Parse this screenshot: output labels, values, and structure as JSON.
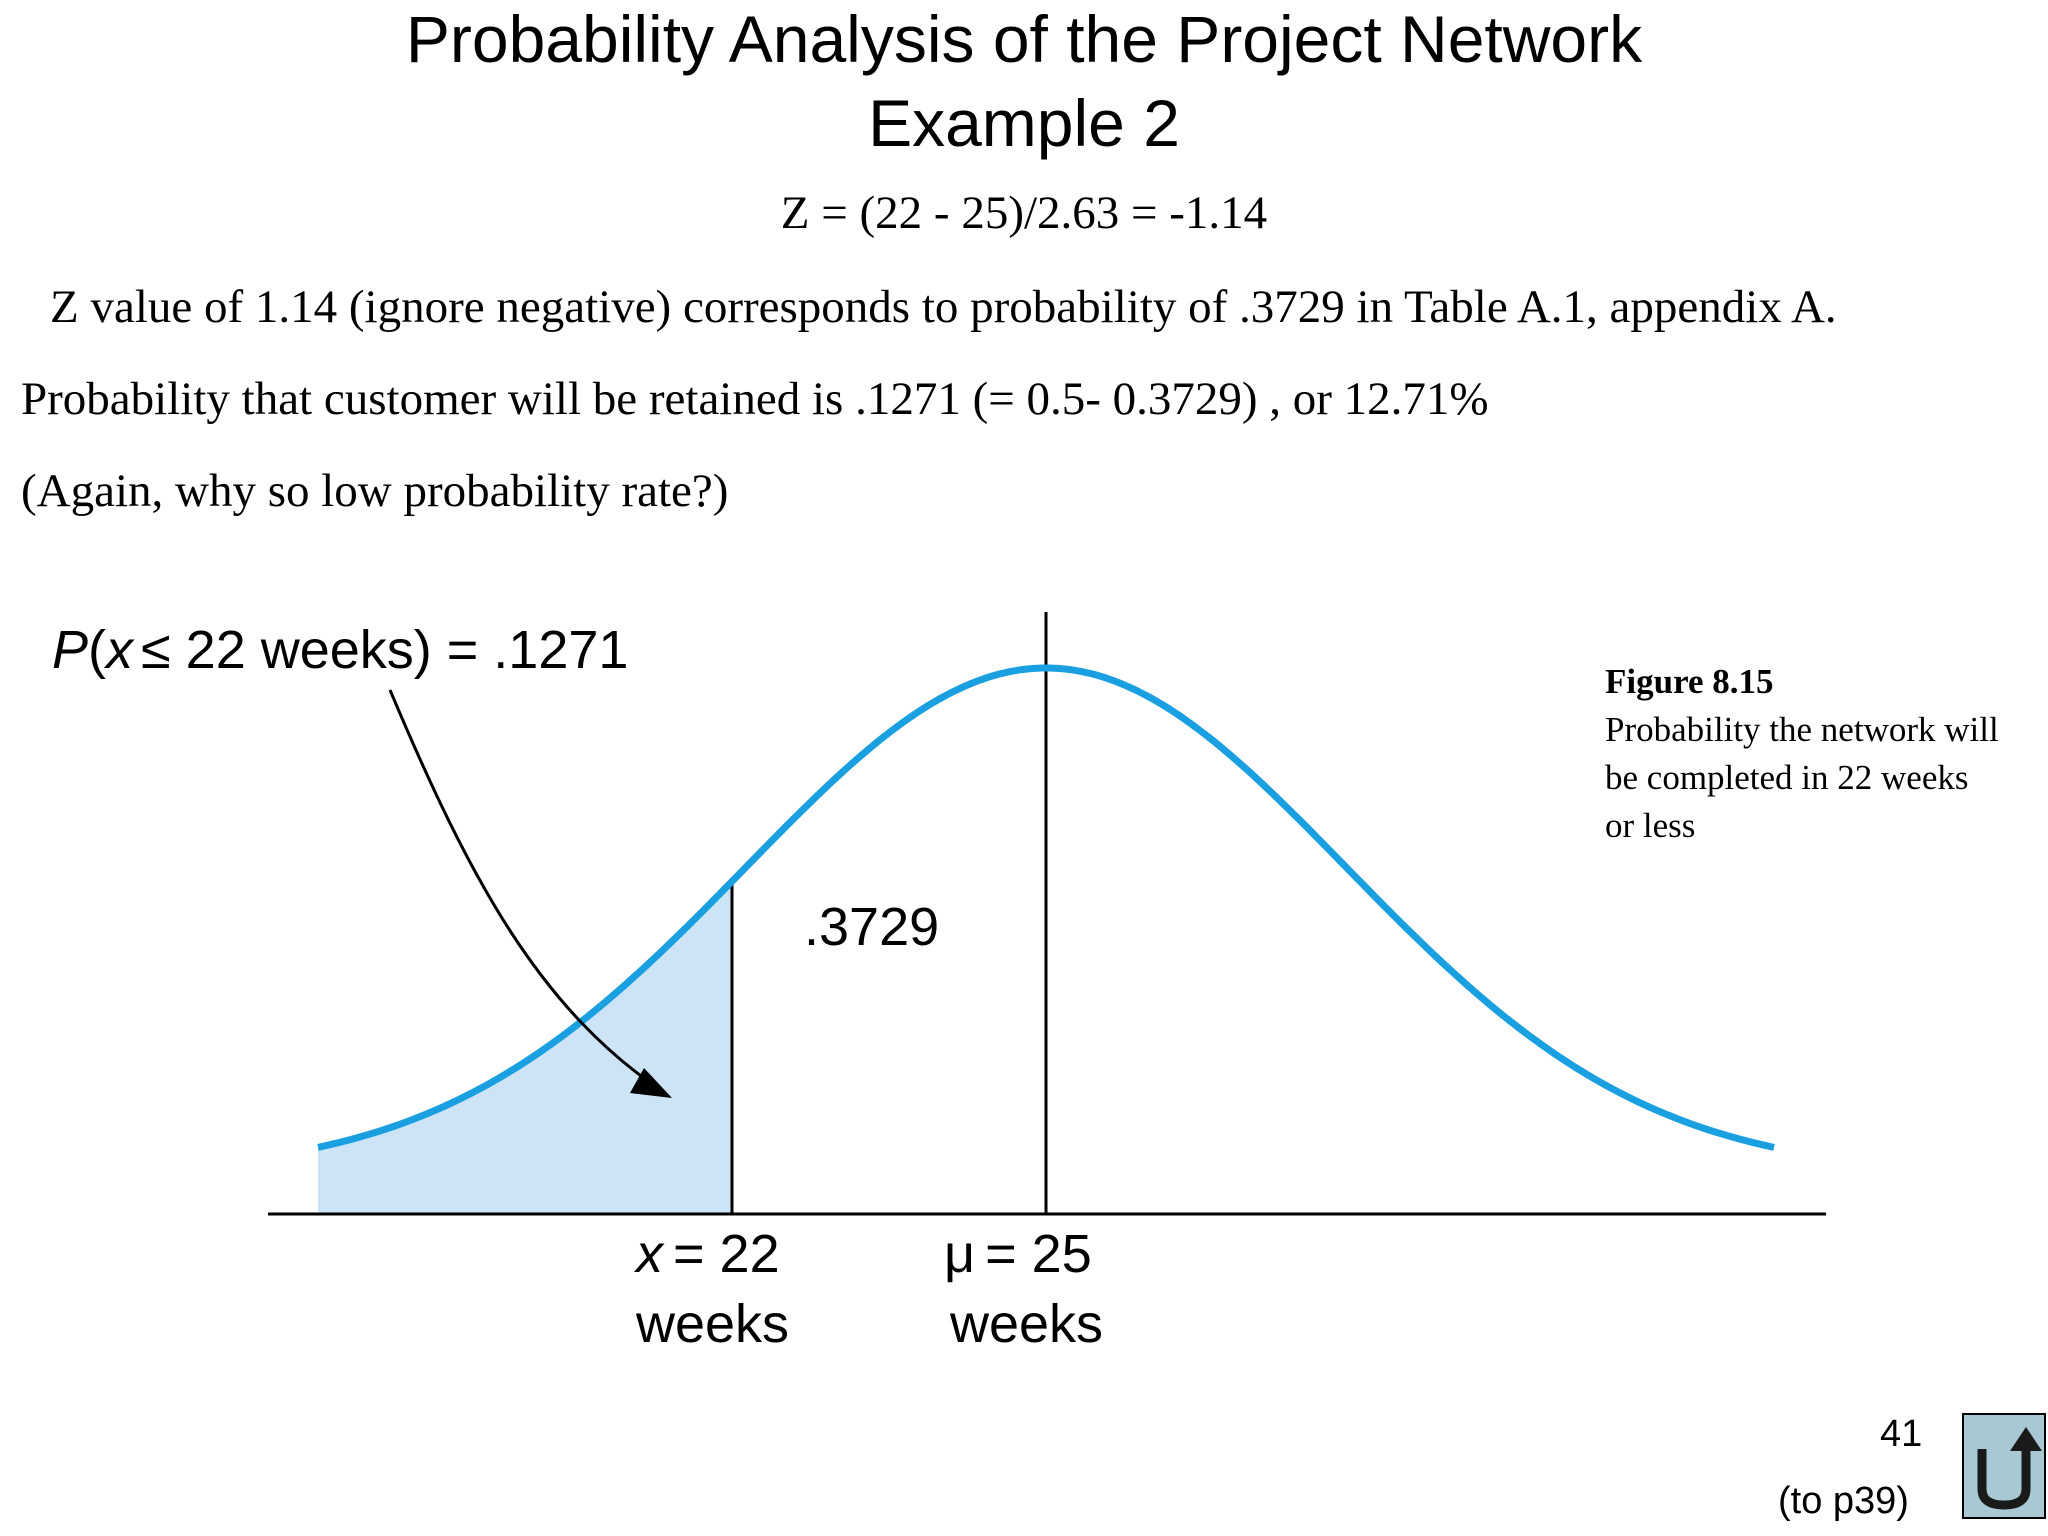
{
  "slide": {
    "title_line1": "Probability Analysis of the Project Network",
    "title_line2": "Example 2",
    "formula": "Z = (22 - 25)/2.63 = -1.14",
    "line1": "Z value of 1.14 (ignore negative) corresponds to probability of .3729 in Table A.1, appendix A.",
    "line2": "Probability that customer will be retained is .1271 (= 0.5- 0.3729) , or 12.71%",
    "line3": "(Again, why so low probability rate?)"
  },
  "figure": {
    "p_label_prefix": "P",
    "p_label_paren_open": "(",
    "p_label_var": "x",
    "p_label_rest": "≤ 22 weeks) = .1271",
    "area_label": ".3729",
    "x_label_var": "x",
    "x_label_value": "= 22",
    "x_label_unit": "weeks",
    "mu_label_symbol": "μ",
    "mu_label_value": "= 25",
    "mu_label_unit": "weeks",
    "curve_color": "#1aa0e0",
    "shade_color": "#cde4f7",
    "caption_title": "Figure 8.15",
    "caption_text": "Probability the network will be completed in 22 weeks or less"
  },
  "footer": {
    "page_number": "41",
    "back_link": "(to p39)",
    "return_icon": "return-arrow-icon",
    "button_color": "#a8c8d4"
  }
}
